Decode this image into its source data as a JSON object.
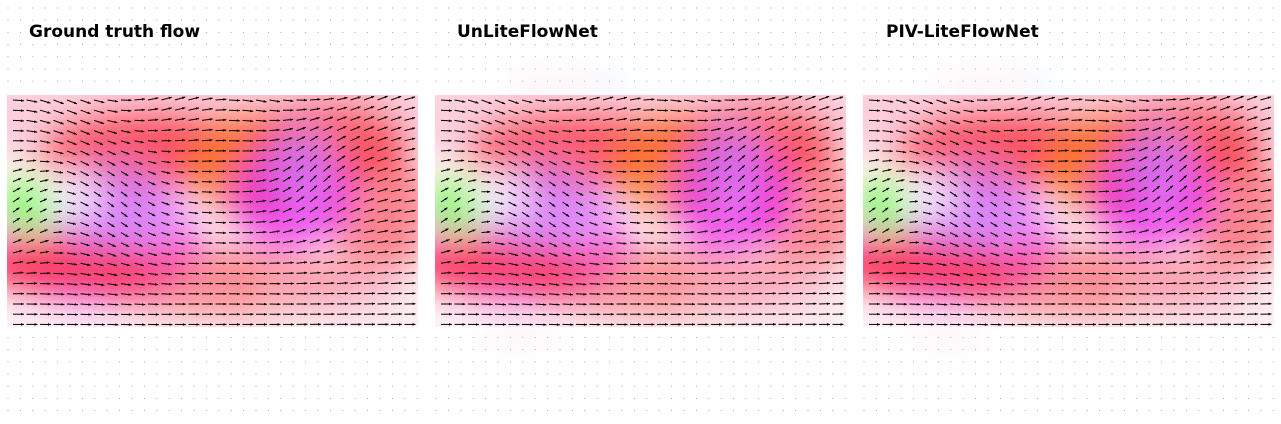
{
  "panels": [
    {
      "title": "Ground truth flow",
      "variant": "gt"
    },
    {
      "title": "UnLiteFlowNet",
      "variant": "unlite"
    },
    {
      "title": "PIV-LiteFlowNet",
      "variant": "piv"
    }
  ],
  "colors": {
    "red": "#ff2a3a",
    "orange": "#ff7a1e",
    "magenta": "#e818f0",
    "violet": "#c890ff",
    "green": "#8cff6a",
    "pink": "#ffb0c8",
    "arrow": "#000000"
  },
  "icons": [
    "flow-field-image",
    "velocity-arrow-icon"
  ]
}
